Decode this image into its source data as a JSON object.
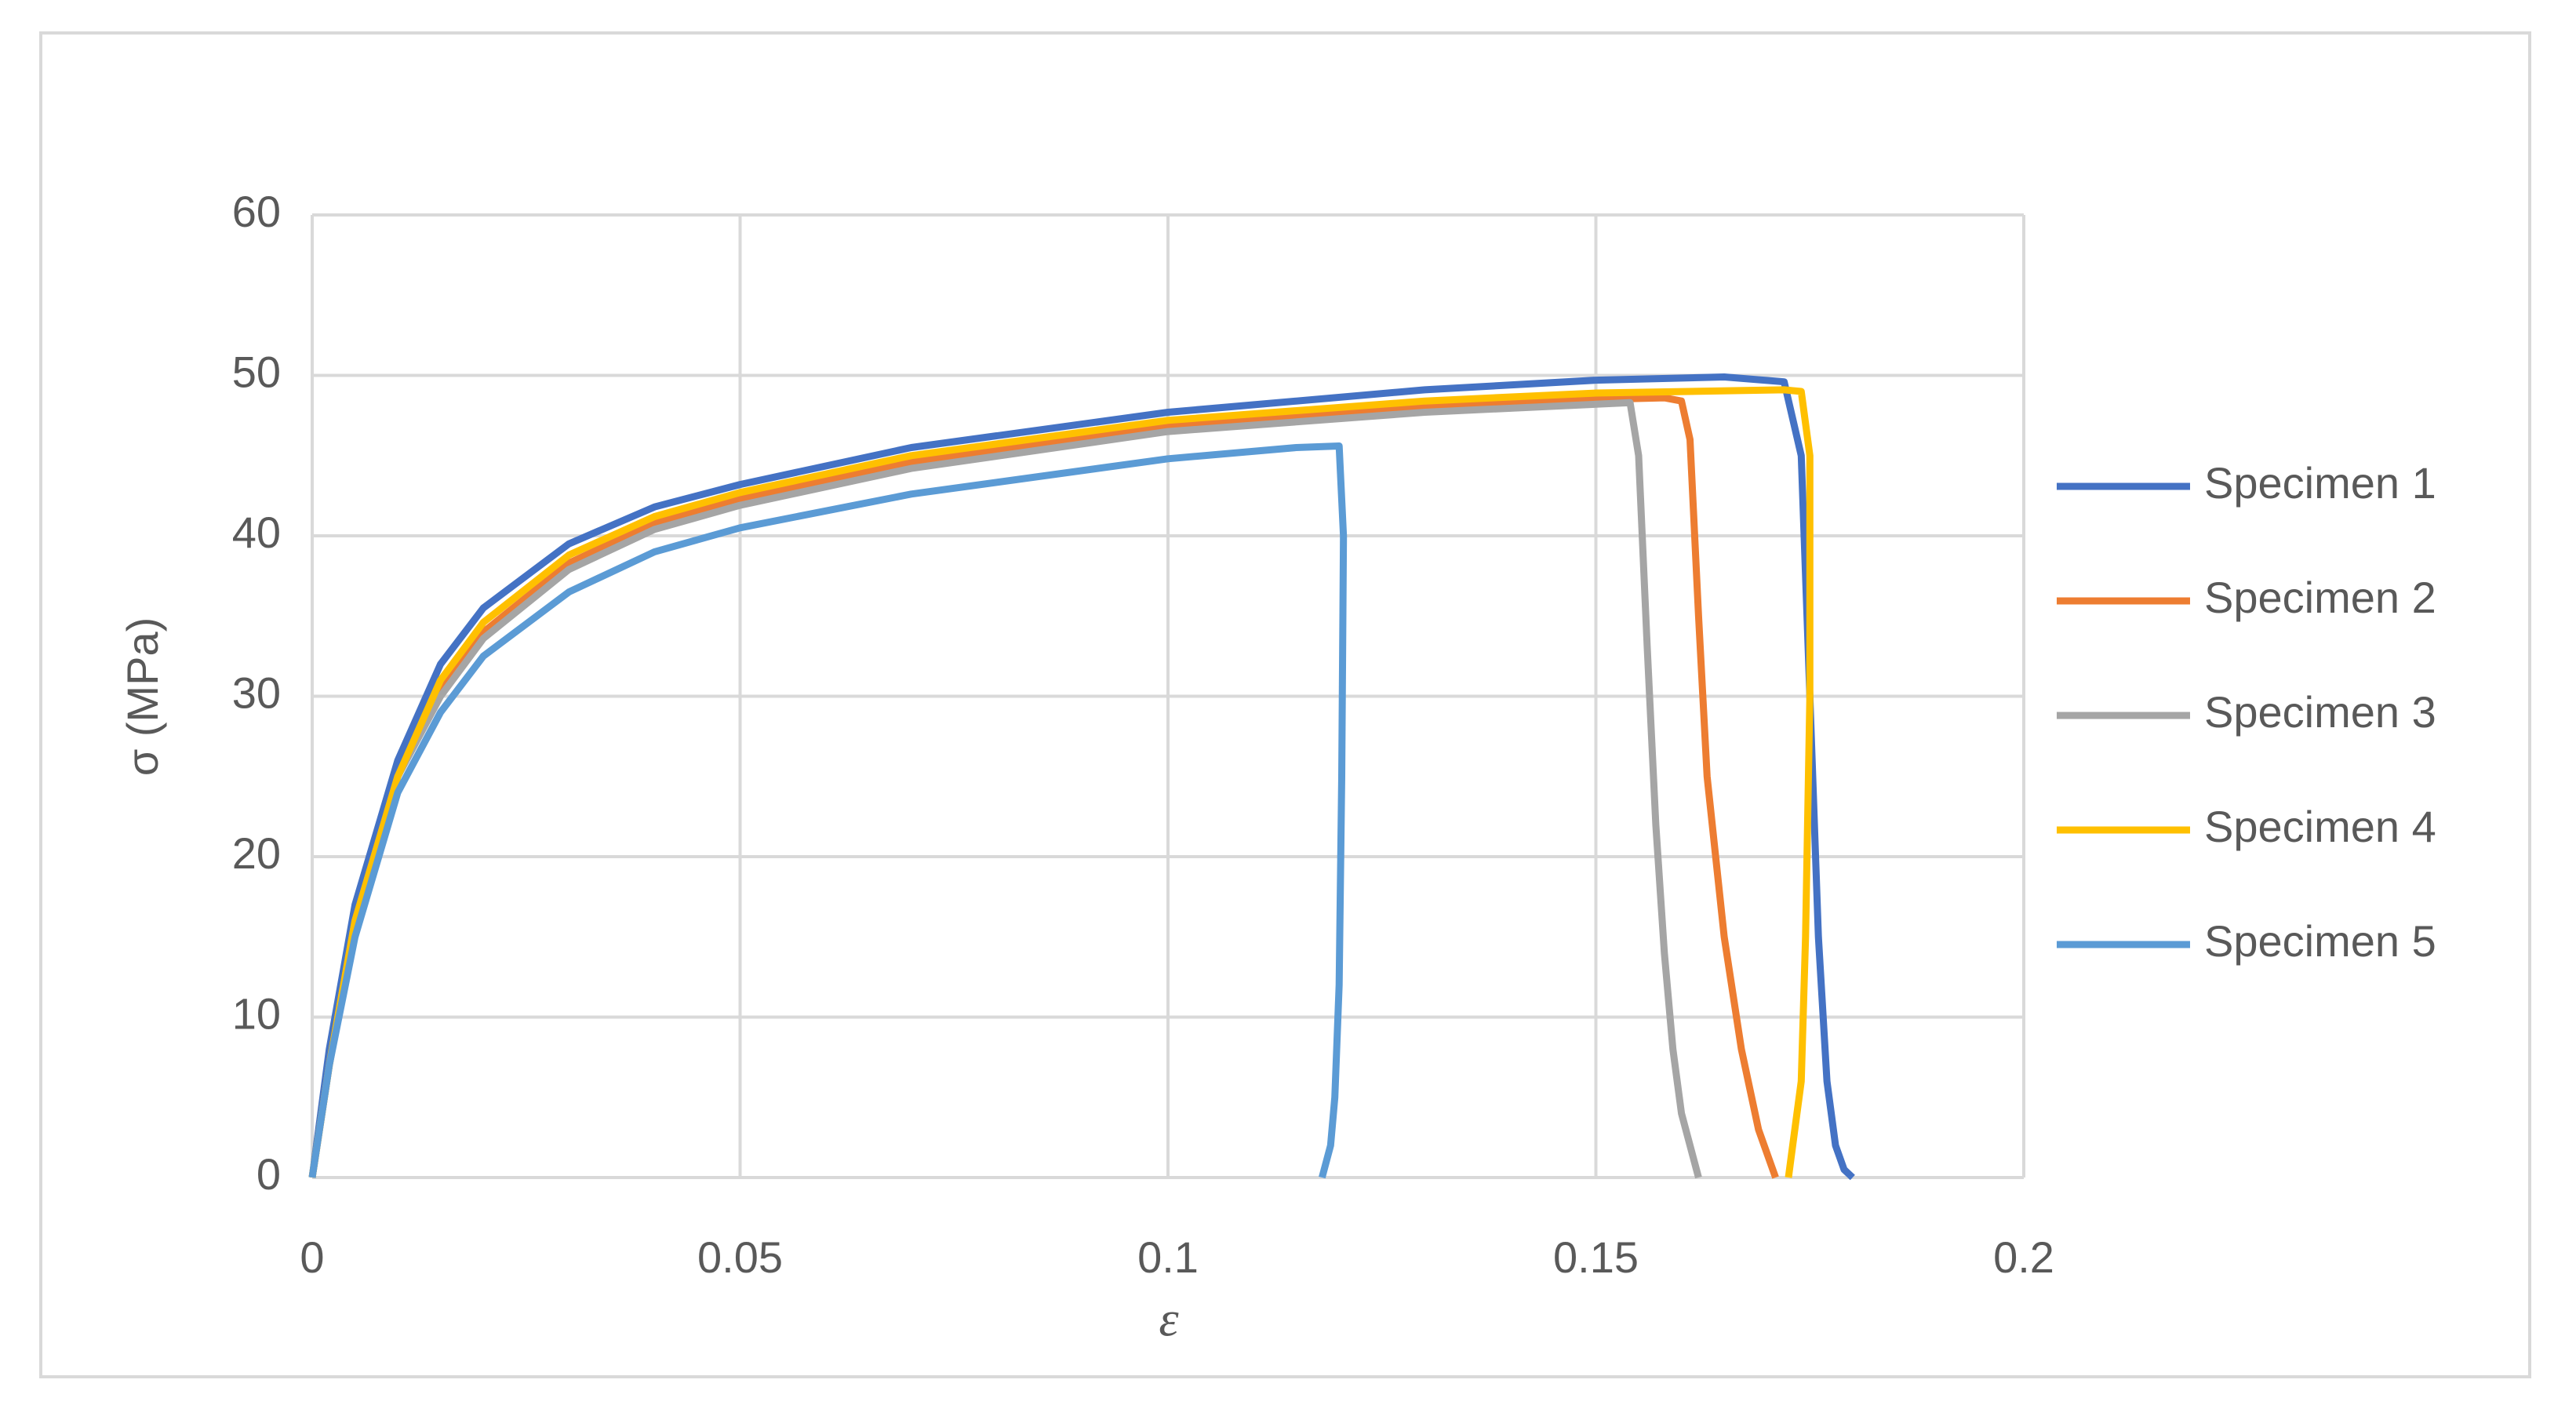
{
  "chart_data": {
    "type": "line",
    "xlabel": "ε",
    "ylabel": "σ (MPa)",
    "xlim": [
      0,
      0.2
    ],
    "xticks": [
      0,
      0.05,
      0.1,
      0.15,
      0.2
    ],
    "ylim": [
      0,
      60
    ],
    "yticks": [
      0,
      10,
      20,
      30,
      40,
      50,
      60
    ],
    "grid": true,
    "legend": "right",
    "series": [
      {
        "name": "Specimen 1",
        "color": "#4472c4",
        "x": [
          0,
          0.002,
          0.005,
          0.01,
          0.015,
          0.02,
          0.03,
          0.04,
          0.05,
          0.07,
          0.1,
          0.13,
          0.15,
          0.165,
          0.172,
          0.174,
          0.175,
          0.176,
          0.177,
          0.178,
          0.179,
          0.18
        ],
        "values": [
          0,
          8,
          17,
          26,
          32,
          35.5,
          39.5,
          41.8,
          43.2,
          45.5,
          47.7,
          49.1,
          49.7,
          49.9,
          49.6,
          45,
          30,
          15,
          6,
          2,
          0.5,
          0
        ]
      },
      {
        "name": "Specimen 2",
        "color": "#ed7d31",
        "x": [
          0,
          0.002,
          0.005,
          0.01,
          0.015,
          0.02,
          0.03,
          0.04,
          0.05,
          0.07,
          0.1,
          0.13,
          0.15,
          0.158,
          0.16,
          0.161,
          0.162,
          0.163,
          0.165,
          0.167,
          0.169,
          0.171
        ],
        "values": [
          0,
          7,
          16,
          25,
          30.5,
          34,
          38.3,
          40.8,
          42.3,
          44.6,
          46.9,
          48.1,
          48.5,
          48.6,
          48.4,
          46,
          35,
          25,
          15,
          8,
          3,
          0
        ]
      },
      {
        "name": "Specimen 3",
        "color": "#a5a5a5",
        "x": [
          0,
          0.002,
          0.005,
          0.01,
          0.015,
          0.02,
          0.03,
          0.04,
          0.05,
          0.07,
          0.1,
          0.13,
          0.15,
          0.154,
          0.155,
          0.156,
          0.157,
          0.158,
          0.159,
          0.16,
          0.162
        ],
        "values": [
          0,
          7,
          16,
          25,
          30,
          33.6,
          37.9,
          40.4,
          41.9,
          44.2,
          46.5,
          47.7,
          48.2,
          48.3,
          45,
          33,
          22,
          14,
          8,
          4,
          0
        ]
      },
      {
        "name": "Specimen 4",
        "color": "#ffc000",
        "x": [
          0,
          0.002,
          0.005,
          0.01,
          0.015,
          0.02,
          0.03,
          0.04,
          0.05,
          0.07,
          0.1,
          0.13,
          0.15,
          0.172,
          0.174,
          0.175,
          0.175,
          0.1745,
          0.174,
          0.173,
          0.1725
        ],
        "values": [
          0,
          7,
          16,
          25,
          31,
          34.6,
          38.8,
          41.2,
          42.7,
          45,
          47.2,
          48.4,
          48.9,
          49.1,
          49,
          45,
          30,
          15,
          6,
          2,
          0
        ]
      },
      {
        "name": "Specimen 5",
        "color": "#5b9bd5",
        "x": [
          0,
          0.002,
          0.005,
          0.01,
          0.015,
          0.02,
          0.03,
          0.04,
          0.05,
          0.07,
          0.1,
          0.115,
          0.12,
          0.1205,
          0.1203,
          0.12,
          0.1195,
          0.119,
          0.118
        ],
        "values": [
          0,
          7,
          15,
          24,
          29,
          32.5,
          36.5,
          39,
          40.5,
          42.6,
          44.8,
          45.5,
          45.6,
          40,
          25,
          12,
          5,
          2,
          0
        ]
      }
    ]
  }
}
